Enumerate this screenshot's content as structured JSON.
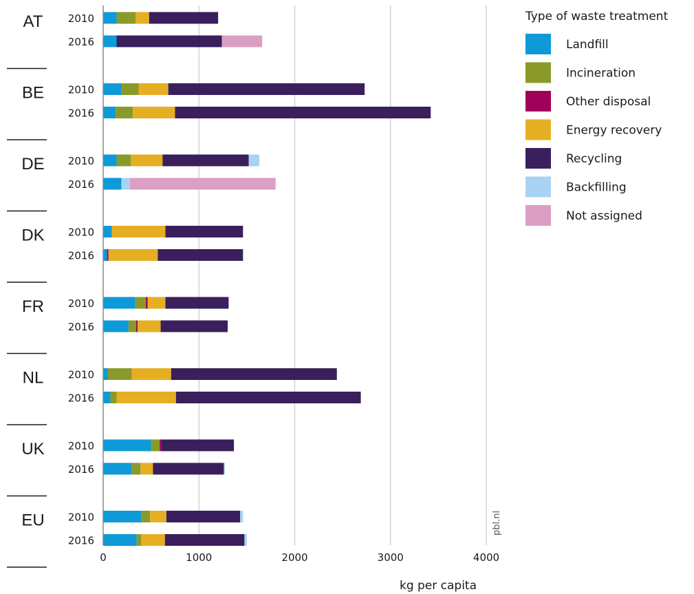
{
  "chart_data": {
    "type": "bar",
    "orientation": "horizontal",
    "stacked": true,
    "xlabel": "kg per capita",
    "xlim": [
      0,
      4000
    ],
    "xticks": [
      "0",
      "1000",
      "2000",
      "3000",
      "4000"
    ],
    "grid": true,
    "legend": {
      "title": "Type of waste treatment",
      "placement": "right"
    },
    "watermark": "pbl.nl",
    "series": [
      {
        "name": "Landfill",
        "color": "#0e9ad7"
      },
      {
        "name": "Incineration",
        "color": "#8a9a2a"
      },
      {
        "name": "Other disposal",
        "color": "#a0005a"
      },
      {
        "name": "Energy recovery",
        "color": "#e6ae22"
      },
      {
        "name": "Recycling",
        "color": "#3a1f5d"
      },
      {
        "name": "Backfilling",
        "color": "#a8d3f2"
      },
      {
        "name": "Not assigned",
        "color": "#dd9ec4"
      }
    ],
    "groups": [
      {
        "country": "AT",
        "bars": [
          {
            "year": "2010",
            "values": [
              140,
              200,
              0,
              140,
              720,
              0,
              0
            ]
          },
          {
            "year": "2016",
            "values": [
              140,
              0,
              0,
              0,
              1100,
              0,
              420
            ]
          }
        ]
      },
      {
        "country": "BE",
        "bars": [
          {
            "year": "2010",
            "values": [
              190,
              180,
              0,
              310,
              2050,
              0,
              0
            ]
          },
          {
            "year": "2016",
            "values": [
              130,
              180,
              0,
              440,
              2670,
              0,
              0
            ]
          }
        ]
      },
      {
        "country": "DE",
        "bars": [
          {
            "year": "2010",
            "values": [
              140,
              150,
              0,
              330,
              900,
              110,
              0
            ]
          },
          {
            "year": "2016",
            "values": [
              190,
              0,
              0,
              0,
              0,
              90,
              1520
            ]
          }
        ]
      },
      {
        "country": "DK",
        "bars": [
          {
            "year": "2010",
            "values": [
              90,
              0,
              0,
              560,
              810,
              0,
              0
            ]
          },
          {
            "year": "2016",
            "values": [
              40,
              0,
              15,
              515,
              890,
              0,
              0
            ]
          }
        ]
      },
      {
        "country": "FR",
        "bars": [
          {
            "year": "2010",
            "values": [
              335,
              110,
              20,
              185,
              660,
              0,
              0
            ]
          },
          {
            "year": "2016",
            "values": [
              265,
              80,
              15,
              240,
              700,
              0,
              0
            ]
          }
        ]
      },
      {
        "country": "NL",
        "bars": [
          {
            "year": "2010",
            "values": [
              50,
              250,
              0,
              410,
              1730,
              0,
              0
            ]
          },
          {
            "year": "2016",
            "values": [
              75,
              65,
              0,
              620,
              1930,
              0,
              0
            ]
          }
        ]
      },
      {
        "country": "UK",
        "bars": [
          {
            "year": "2010",
            "values": [
              500,
              90,
              15,
              0,
              760,
              0,
              0
            ]
          },
          {
            "year": "2016",
            "values": [
              300,
              90,
              0,
              130,
              740,
              10,
              0
            ]
          }
        ]
      },
      {
        "country": "EU",
        "bars": [
          {
            "year": "2010",
            "values": [
              400,
              90,
              0,
              170,
              770,
              30,
              0
            ]
          },
          {
            "year": "2016",
            "values": [
              350,
              45,
              0,
              250,
              830,
              25,
              0
            ]
          }
        ]
      }
    ]
  }
}
